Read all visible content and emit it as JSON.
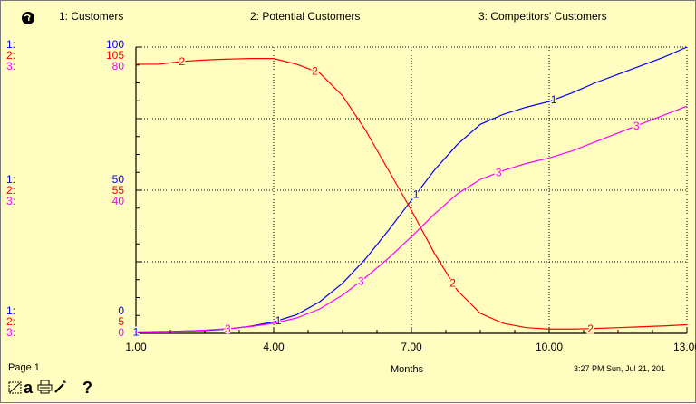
{
  "chart_data": {
    "type": "line",
    "xlabel": "Months",
    "xlim": [
      1,
      13
    ],
    "x_ticks": [
      "1.00",
      "4.00",
      "7.00",
      "10.00",
      "13.00"
    ],
    "grid": true,
    "series": [
      {
        "name": "Customers",
        "legend": "1: Customers",
        "marker": "1",
        "color": "#0000ff",
        "ylim": [
          0,
          100
        ],
        "axis_labels": {
          "top": "100",
          "mid": "50",
          "bottom": "0"
        },
        "axis_prefix": "1:",
        "x": [
          1.0,
          1.5,
          2.0,
          2.5,
          3.0,
          3.5,
          4.0,
          4.5,
          5.0,
          5.5,
          6.0,
          6.5,
          7.0,
          7.5,
          8.0,
          8.5,
          9.0,
          9.5,
          10.0,
          10.5,
          11.0,
          11.5,
          12.0,
          12.5,
          13.0
        ],
        "y": [
          0.5,
          0.6,
          0.8,
          1.0,
          1.5,
          2.5,
          4.0,
          6.5,
          11.0,
          17.5,
          26.0,
          36.0,
          46.5,
          57.0,
          66.0,
          73.0,
          76.5,
          79.0,
          81.0,
          84.0,
          87.5,
          90.5,
          93.5,
          96.5,
          100.0
        ]
      },
      {
        "name": "Potential Customers",
        "legend": "2: Potential Customers",
        "marker": "2",
        "color": "#ff0000",
        "ylim": [
          5,
          105
        ],
        "axis_labels": {
          "top": "105",
          "mid": "55",
          "bottom": "5"
        },
        "axis_prefix": "2:",
        "x": [
          1.0,
          1.5,
          2.0,
          2.5,
          3.0,
          3.5,
          4.0,
          4.5,
          5.0,
          5.5,
          6.0,
          6.5,
          7.0,
          7.5,
          8.0,
          8.5,
          9.0,
          9.5,
          10.0,
          10.5,
          11.0,
          11.5,
          12.0,
          12.5,
          13.0
        ],
        "y": [
          99.0,
          99.0,
          100.0,
          100.5,
          100.8,
          101.0,
          101.0,
          99.0,
          96.0,
          88.0,
          76.0,
          62.0,
          48.0,
          33.0,
          20.0,
          12.0,
          8.5,
          7.0,
          6.5,
          6.5,
          6.7,
          7.0,
          7.3,
          7.6,
          8.0
        ]
      },
      {
        "name": "Competitors' Customers",
        "legend": "3: Competitors' Customers",
        "marker": "3",
        "color": "#ff00ff",
        "ylim": [
          0,
          80
        ],
        "axis_labels": {
          "top": "80",
          "mid": "40",
          "bottom": "0"
        },
        "axis_prefix": "3:",
        "x": [
          1.0,
          1.5,
          2.0,
          2.5,
          3.0,
          3.5,
          4.0,
          4.5,
          5.0,
          5.5,
          6.0,
          6.5,
          7.0,
          7.5,
          8.0,
          8.5,
          9.0,
          9.5,
          10.0,
          10.5,
          11.0,
          11.5,
          12.0,
          12.5,
          13.0
        ],
        "y": [
          0.3,
          0.4,
          0.6,
          0.9,
          1.3,
          1.9,
          2.8,
          4.3,
          6.8,
          10.7,
          15.6,
          21.0,
          27.0,
          33.3,
          39.0,
          43.0,
          45.5,
          47.5,
          49.0,
          51.0,
          53.5,
          56.0,
          58.5,
          61.0,
          63.5
        ]
      }
    ],
    "marker_positions": {
      "Customers": [
        1.0,
        4.1,
        7.1,
        10.1
      ],
      "Potential Customers": [
        2.0,
        4.9,
        7.9,
        10.9
      ],
      "Competitors' Customers": [
        3.0,
        5.9,
        8.9,
        11.9
      ]
    }
  },
  "footer": {
    "page": "Page 1",
    "timestamp": "3:27 PM   Sun, Jul 21, 201"
  },
  "icons": [
    "globe-icon",
    "lock-icon",
    "print-icon",
    "wand-icon",
    "help-icon"
  ],
  "help_glyph": "?",
  "lock_glyph": "a"
}
